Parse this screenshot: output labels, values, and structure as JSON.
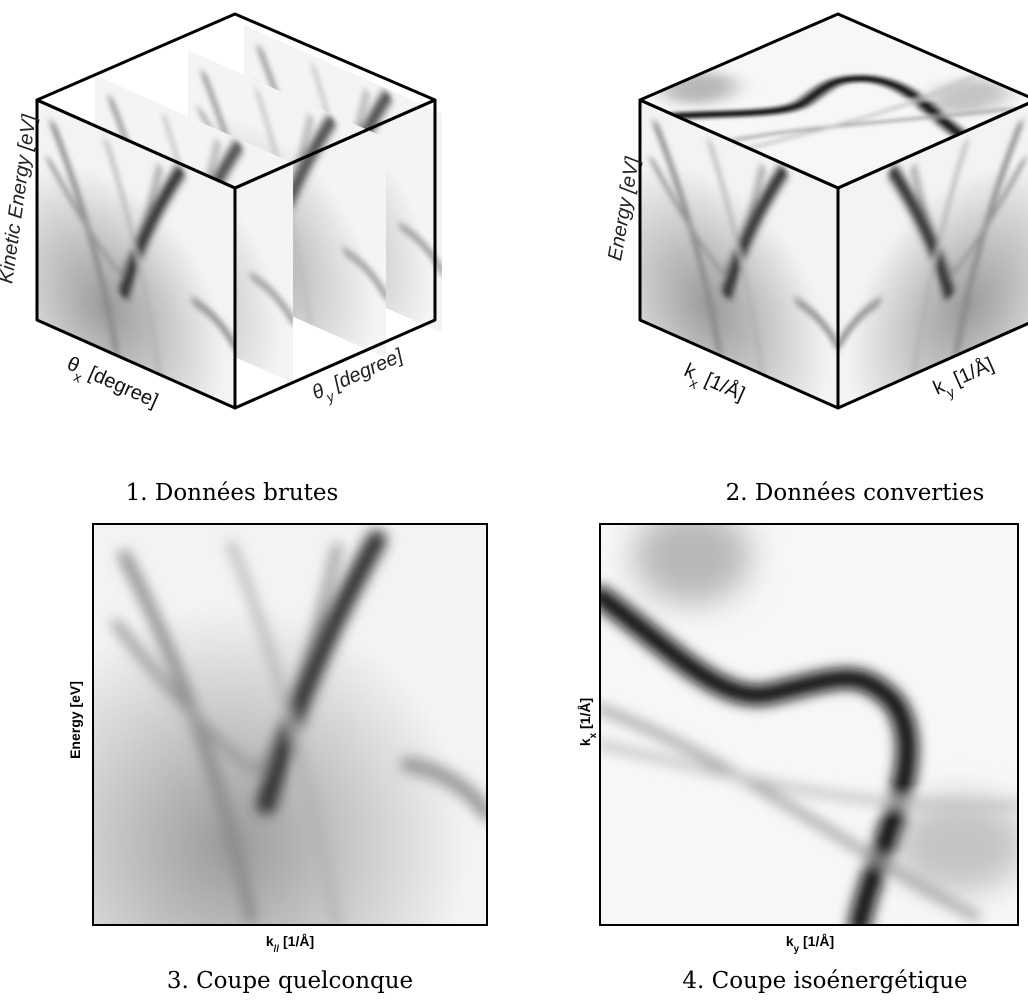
{
  "panels": [
    {
      "caption": "1. Données brutes",
      "labels": [
        {
          "text": "Kinetic Energy [eV]"
        },
        {
          "symbol": "θ",
          "subscript": "x",
          "unit": "[degree]"
        },
        {
          "symbol": "θ",
          "subscript": "y",
          "unit": "[degree]"
        }
      ]
    },
    {
      "caption": "2. Données converties",
      "labels": [
        {
          "text": "Energy [eV]"
        },
        {
          "symbol": "k",
          "subscript": "x",
          "unit": "[1/Å]"
        },
        {
          "symbol": "k",
          "subscript": "y",
          "unit": "[1/Å]"
        }
      ]
    },
    {
      "caption": "3. Coupe quelconque",
      "labels": [
        {
          "text": "Energy [eV]"
        },
        {
          "symbol": "k",
          "subscript": "//",
          "unit": "[1/Å]"
        }
      ]
    },
    {
      "caption": "4. Coupe isoénergétique",
      "labels": [
        {
          "symbol": "k",
          "subscript": "x",
          "unit": "[1/Å]"
        },
        {
          "symbol": "k",
          "subscript": "y",
          "unit": "[1/Å]"
        }
      ]
    }
  ]
}
